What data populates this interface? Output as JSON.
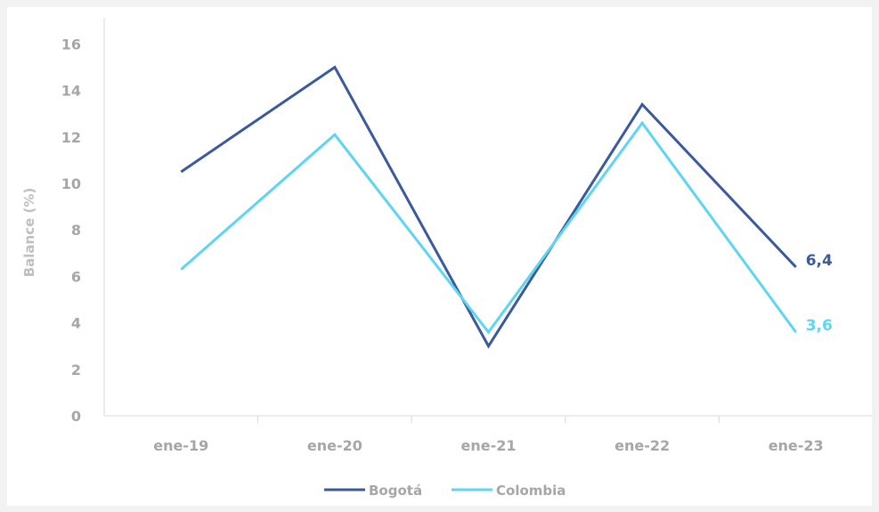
{
  "chart_data": {
    "type": "line",
    "categories": [
      "ene-19",
      "ene-20",
      "ene-21",
      "ene-22",
      "ene-23"
    ],
    "ylabel": "Balance (%)",
    "ylim": [
      0,
      16
    ],
    "yticks": [
      "0",
      "2",
      "4",
      "6",
      "8",
      "10",
      "12",
      "14",
      "16"
    ],
    "grid": false,
    "legend_position": "bottom-center",
    "series": [
      {
        "name": "Bogotá",
        "color": "#3a5a9b",
        "values": [
          10.5,
          15.0,
          3.0,
          13.4,
          6.4
        ],
        "end_label": "6,4"
      },
      {
        "name": "Colombia",
        "color": "#5dd5f3",
        "values": [
          6.3,
          12.1,
          3.6,
          12.6,
          3.6
        ],
        "end_label": "3,6"
      }
    ]
  }
}
